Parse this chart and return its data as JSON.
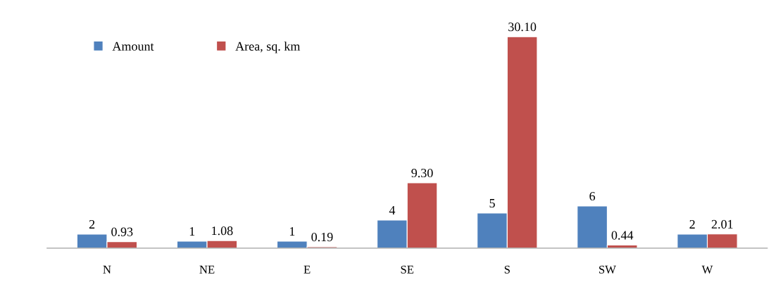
{
  "chart_data": {
    "type": "bar",
    "categories": [
      "N",
      "NE",
      "E",
      "SE",
      "S",
      "SW",
      "W"
    ],
    "series": [
      {
        "name": "Amount",
        "color": "#4f81bd",
        "values": [
          2,
          1,
          1,
          4,
          5,
          6,
          2
        ],
        "value_labels": [
          "2",
          "1",
          "1",
          "4",
          "5",
          "6",
          "2"
        ]
      },
      {
        "name": "Area, sq. km",
        "color": "#c0504d",
        "values": [
          0.93,
          1.08,
          0.19,
          9.3,
          30.1,
          0.44,
          2.01
        ],
        "value_labels": [
          "0.93",
          "1.08",
          "0.19",
          "9.30",
          "30.10",
          "0.44",
          "2.01"
        ]
      }
    ],
    "legend": "top left",
    "grid": false,
    "tick_labels": "x"
  }
}
